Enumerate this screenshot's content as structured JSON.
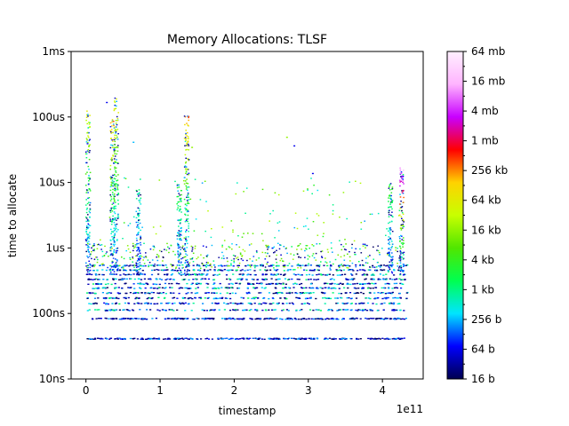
{
  "chart_data": {
    "type": "scatter",
    "title": "Memory Allocations: TLSF",
    "xlabel": "timestamp",
    "ylabel": "time to allocate",
    "x_offset_label": "1e11",
    "x_scale": 100000000000.0,
    "xlim": [
      -20000000000.0,
      455000000000.0
    ],
    "x_ticks": [
      {
        "value": 0,
        "label": "0"
      },
      {
        "value": 100000000000.0,
        "label": "1"
      },
      {
        "value": 200000000000.0,
        "label": "2"
      },
      {
        "value": 300000000000.0,
        "label": "3"
      },
      {
        "value": 400000000000.0,
        "label": "4"
      }
    ],
    "y_scale": "log",
    "y_unit": "seconds",
    "ylim": [
      1e-08,
      0.001
    ],
    "y_ticks": [
      {
        "value": 1e-08,
        "label": "10ns"
      },
      {
        "value": 1e-07,
        "label": "100ns"
      },
      {
        "value": 1e-06,
        "label": "1us"
      },
      {
        "value": 1e-05,
        "label": "10us"
      },
      {
        "value": 0.0001,
        "label": "100us"
      },
      {
        "value": 0.001,
        "label": "1ms"
      }
    ],
    "colorbar": {
      "label_scale": "log2",
      "range_bytes": [
        16,
        67108864
      ],
      "ticks": [
        {
          "value": 16,
          "label": "16 b"
        },
        {
          "value": 64,
          "label": "64 b"
        },
        {
          "value": 256,
          "label": "256 b"
        },
        {
          "value": 1024,
          "label": "1 kb"
        },
        {
          "value": 4096,
          "label": "4 kb"
        },
        {
          "value": 16384,
          "label": "16 kb"
        },
        {
          "value": 65536,
          "label": "64 kb"
        },
        {
          "value": 262144,
          "label": "256 kb"
        },
        {
          "value": 1048576,
          "label": "1 mb"
        },
        {
          "value": 4194304,
          "label": "4 mb"
        },
        {
          "value": 16777216,
          "label": "16 mb"
        },
        {
          "value": 67108864,
          "label": "64 mb"
        }
      ],
      "colormap": [
        "#000050",
        "#0000ff",
        "#00e5ff",
        "#00ff50",
        "#50e600",
        "#c8ff00",
        "#ffd200",
        "#ff0000",
        "#c800ff",
        "#ffb4ff",
        "#fff0ff"
      ]
    },
    "series_summary": {
      "x_range": [
        0,
        433000000000.0
      ],
      "dense_bands_seconds": [
        4.2e-08,
        8.5e-08,
        1.15e-07,
        1.45e-07,
        1.75e-07,
        2.1e-07,
        2.5e-07,
        2.9e-07,
        3.4e-07,
        4e-07,
        4.7e-07,
        5.5e-07
      ],
      "spikes": [
        {
          "x": 2000000000.0,
          "max_seconds": 0.00013,
          "max_size_bytes": 65536
        },
        {
          "x": 35000000000.0,
          "max_seconds": 0.0001,
          "max_size_bytes": 262144
        },
        {
          "x": 40000000000.0,
          "max_seconds": 0.0002,
          "max_size_bytes": 65536
        },
        {
          "x": 70000000000.0,
          "max_seconds": 8e-06,
          "max_size_bytes": 1024
        },
        {
          "x": 125000000000.0,
          "max_seconds": 1e-05,
          "max_size_bytes": 4096
        },
        {
          "x": 135000000000.0,
          "max_seconds": 0.00011,
          "max_size_bytes": 262144
        },
        {
          "x": 410000000000.0,
          "max_seconds": 1e-05,
          "max_size_bytes": 4096
        },
        {
          "x": 425000000000.0,
          "max_seconds": 1.7e-05,
          "max_size_bytes": 16777216
        }
      ],
      "outliers": [
        {
          "x": 1000000000.0,
          "seconds": 4e-05,
          "size_bytes": 64
        },
        {
          "x": 27000000000.0,
          "seconds": 0.00017,
          "size_bytes": 64
        },
        {
          "x": 63000000000.0,
          "seconds": 4.2e-05,
          "size_bytes": 256
        },
        {
          "x": 270000000000.0,
          "seconds": 5e-05,
          "size_bytes": 16384
        },
        {
          "x": 280000000000.0,
          "seconds": 3.7e-05,
          "size_bytes": 64
        },
        {
          "x": 305000000000.0,
          "seconds": 1.4e-05,
          "size_bytes": 64
        },
        {
          "x": 142000000000.0,
          "seconds": 3.5e-05,
          "size_bytes": 16384
        }
      ]
    }
  }
}
